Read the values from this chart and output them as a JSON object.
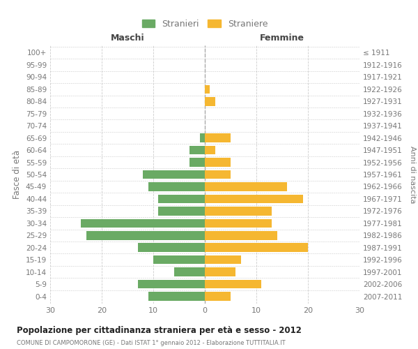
{
  "age_groups": [
    "0-4",
    "5-9",
    "10-14",
    "15-19",
    "20-24",
    "25-29",
    "30-34",
    "35-39",
    "40-44",
    "45-49",
    "50-54",
    "55-59",
    "60-64",
    "65-69",
    "70-74",
    "75-79",
    "80-84",
    "85-89",
    "90-94",
    "95-99",
    "100+"
  ],
  "birth_years": [
    "2007-2011",
    "2002-2006",
    "1997-2001",
    "1992-1996",
    "1987-1991",
    "1982-1986",
    "1977-1981",
    "1972-1976",
    "1967-1971",
    "1962-1966",
    "1957-1961",
    "1952-1956",
    "1947-1951",
    "1942-1946",
    "1937-1941",
    "1932-1936",
    "1927-1931",
    "1922-1926",
    "1917-1921",
    "1912-1916",
    "≤ 1911"
  ],
  "males": [
    11,
    13,
    6,
    10,
    13,
    23,
    24,
    9,
    9,
    11,
    12,
    3,
    3,
    1,
    0,
    0,
    0,
    0,
    0,
    0,
    0
  ],
  "females": [
    5,
    11,
    6,
    7,
    20,
    14,
    13,
    13,
    19,
    16,
    5,
    5,
    2,
    5,
    0,
    0,
    2,
    1,
    0,
    0,
    0
  ],
  "male_color": "#6aaa64",
  "female_color": "#f5b731",
  "bar_height": 0.72,
  "xlim": 30,
  "title": "Popolazione per cittadinanza straniera per età e sesso - 2012",
  "subtitle": "COMUNE DI CAMPOMORONE (GE) - Dati ISTAT 1° gennaio 2012 - Elaborazione TUTTITALIA.IT",
  "ylabel_left": "Fasce di età",
  "ylabel_right": "Anni di nascita",
  "xlabel_left": "Maschi",
  "xlabel_right": "Femmine",
  "legend_male": "Stranieri",
  "legend_female": "Straniere",
  "background_color": "#ffffff",
  "grid_color": "#cccccc",
  "text_color": "#777777",
  "centerline_color": "#aaaaaa"
}
